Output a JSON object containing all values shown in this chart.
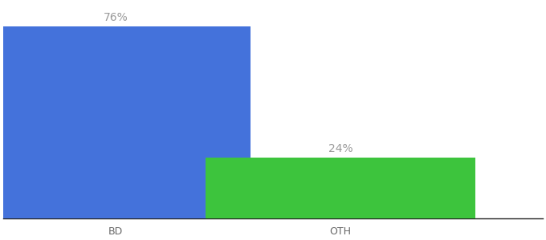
{
  "categories": [
    "BD",
    "OTH"
  ],
  "values": [
    76,
    24
  ],
  "bar_colors": [
    "#4472db",
    "#3dc43d"
  ],
  "label_texts": [
    "76%",
    "24%"
  ],
  "ylim": [
    0,
    85
  ],
  "background_color": "#ffffff",
  "label_color": "#999999",
  "label_fontsize": 10,
  "tick_fontsize": 9,
  "bar_width": 0.6,
  "x_positions": [
    0.25,
    0.75
  ],
  "xlim": [
    0.0,
    1.2
  ]
}
